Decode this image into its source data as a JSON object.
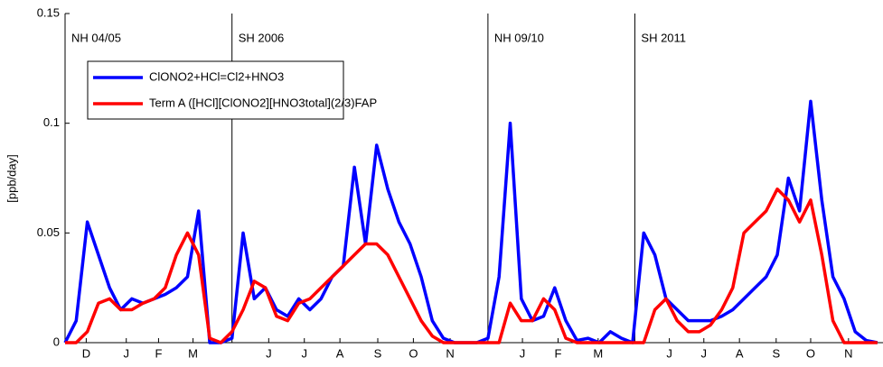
{
  "chart_data": {
    "type": "line",
    "y_label": "[ppb/day]",
    "x": [
      0,
      10,
      20,
      30,
      40,
      50,
      60,
      70,
      80,
      90,
      100,
      110,
      120,
      130,
      140,
      150,
      160,
      170,
      180,
      190,
      200,
      210,
      220,
      230,
      240,
      250,
      260,
      270,
      280,
      290,
      300,
      310,
      320,
      330,
      340,
      350,
      360,
      370,
      380,
      390,
      400,
      410,
      420,
      430,
      440,
      450,
      460,
      470,
      480,
      490,
      500,
      510,
      520,
      530,
      540,
      550,
      560,
      570,
      580,
      590,
      600,
      610,
      620,
      630,
      640,
      650,
      660,
      670,
      680,
      690,
      700,
      710,
      720,
      730
    ],
    "series": [
      {
        "name": "ClONO2+HCl=Cl2+HNO3",
        "color": "#0000ff",
        "values": [
          0,
          0.01,
          0.055,
          0.04,
          0.025,
          0.015,
          0.02,
          0.018,
          0.02,
          0.022,
          0.025,
          0.03,
          0.06,
          0,
          0,
          0.002,
          0.05,
          0.02,
          0.025,
          0.015,
          0.012,
          0.02,
          0.015,
          0.02,
          0.03,
          0.035,
          0.08,
          0.045,
          0.09,
          0.07,
          0.055,
          0.045,
          0.03,
          0.01,
          0.002,
          0,
          0,
          0,
          0.002,
          0.03,
          0.1,
          0.02,
          0.01,
          0.012,
          0.025,
          0.01,
          0.001,
          0.002,
          0,
          0.005,
          0.002,
          0,
          0.05,
          0.04,
          0.02,
          0.015,
          0.01,
          0.01,
          0.01,
          0.012,
          0.015,
          0.02,
          0.025,
          0.03,
          0.04,
          0.075,
          0.06,
          0.11,
          0.065,
          0.03,
          0.02,
          0.005,
          0.001,
          0
        ]
      },
      {
        "name": "Term A ([HCl][ClONO2][HNO3total](2/3)FAP",
        "color": "#ff0000",
        "values": [
          0,
          0,
          0.005,
          0.018,
          0.02,
          0.015,
          0.015,
          0.018,
          0.02,
          0.025,
          0.04,
          0.05,
          0.04,
          0.002,
          0,
          0.005,
          0.015,
          0.028,
          0.025,
          0.012,
          0.01,
          0.018,
          0.02,
          0.025,
          0.03,
          0.035,
          0.04,
          0.045,
          0.045,
          0.04,
          0.03,
          0.02,
          0.01,
          0.003,
          0,
          0,
          0,
          0,
          0,
          0,
          0.018,
          0.01,
          0.01,
          0.02,
          0.015,
          0.002,
          0,
          0,
          0,
          0,
          0,
          0,
          0,
          0.015,
          0.02,
          0.01,
          0.005,
          0.005,
          0.008,
          0.015,
          0.025,
          0.05,
          0.055,
          0.06,
          0.07,
          0.065,
          0.055,
          0.065,
          0.04,
          0.01,
          0,
          0,
          0,
          0
        ]
      }
    ],
    "xlim": [
      0,
      735
    ],
    "xticks": [
      {
        "value": 19,
        "label": "D"
      },
      {
        "value": 55,
        "label": "J"
      },
      {
        "value": 84,
        "label": "F"
      },
      {
        "value": 115,
        "label": "M"
      },
      {
        "value": 183,
        "label": "J"
      },
      {
        "value": 215,
        "label": "J"
      },
      {
        "value": 247,
        "label": "A"
      },
      {
        "value": 281,
        "label": "S"
      },
      {
        "value": 313,
        "label": "O"
      },
      {
        "value": 346,
        "label": "N"
      },
      {
        "value": 411,
        "label": "J"
      },
      {
        "value": 443,
        "label": "F"
      },
      {
        "value": 479,
        "label": "M"
      },
      {
        "value": 543,
        "label": "J"
      },
      {
        "value": 574,
        "label": "J"
      },
      {
        "value": 606,
        "label": "A"
      },
      {
        "value": 639,
        "label": "S"
      },
      {
        "value": 670,
        "label": "O"
      },
      {
        "value": 704,
        "label": "N"
      }
    ],
    "ylim": [
      0,
      0.15
    ],
    "yticks": [
      0,
      0.05,
      0.1,
      0.15
    ],
    "panels": [
      {
        "label": "NH 04/05",
        "start": 0
      },
      {
        "label": "SH 2006",
        "start": 150
      },
      {
        "label": "NH 09/10",
        "start": 380
      },
      {
        "label": "SH 2011",
        "start": 512
      }
    ]
  }
}
